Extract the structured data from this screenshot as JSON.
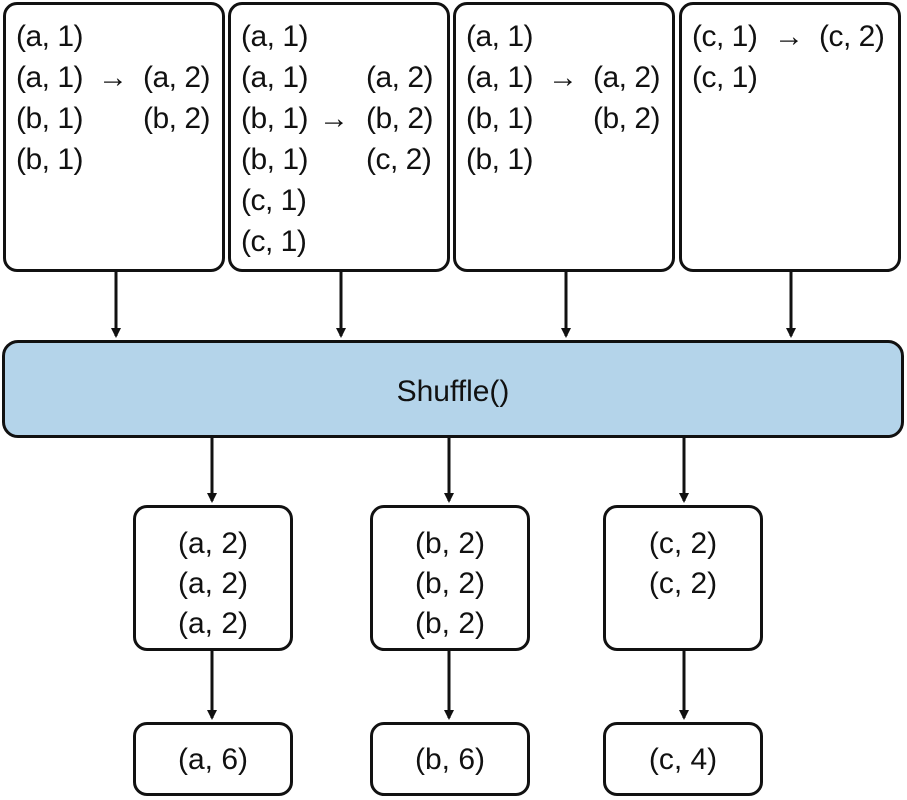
{
  "map_boxes": [
    {
      "rows": [
        {
          "left": "(a, 1)",
          "arrow": "",
          "right": ""
        },
        {
          "left": "(a, 1)",
          "arrow": "→",
          "right": "(a, 2)"
        },
        {
          "left": "(b, 1)",
          "arrow": "",
          "right": "(b, 2)"
        },
        {
          "left": "(b, 1)",
          "arrow": "",
          "right": ""
        }
      ]
    },
    {
      "rows": [
        {
          "left": "(a, 1)",
          "arrow": "",
          "right": ""
        },
        {
          "left": "(a, 1)",
          "arrow": "",
          "right": "(a, 2)"
        },
        {
          "left": "(b, 1)",
          "arrow": "→",
          "right": "(b, 2)"
        },
        {
          "left": "(b, 1)",
          "arrow": "",
          "right": "(c, 2)"
        },
        {
          "left": "(c, 1)",
          "arrow": "",
          "right": ""
        },
        {
          "left": "(c, 1)",
          "arrow": "",
          "right": ""
        }
      ]
    },
    {
      "rows": [
        {
          "left": "(a, 1)",
          "arrow": "",
          "right": ""
        },
        {
          "left": "(a, 1)",
          "arrow": "→",
          "right": "(a, 2)"
        },
        {
          "left": "(b, 1)",
          "arrow": "",
          "right": "(b, 2)"
        },
        {
          "left": "(b, 1)",
          "arrow": "",
          "right": ""
        }
      ]
    },
    {
      "rows": [
        {
          "left": "(c, 1)",
          "arrow": "→",
          "right": "(c, 2)"
        },
        {
          "left": "(c, 1)",
          "arrow": "",
          "right": ""
        }
      ]
    }
  ],
  "shuffle_label": "Shuffle()",
  "groups": [
    {
      "items": [
        "(a, 2)",
        "(a, 2)",
        "(a, 2)"
      ],
      "result": "(a, 6)"
    },
    {
      "items": [
        "(b, 2)",
        "(b, 2)",
        "(b, 2)"
      ],
      "result": "(b, 6)"
    },
    {
      "items": [
        "(c, 2)",
        "(c, 2)"
      ],
      "result": "(c, 4)"
    }
  ]
}
